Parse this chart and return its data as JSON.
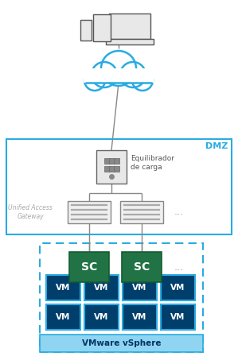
{
  "bg_color": "#ffffff",
  "blue": "#29abe2",
  "dark_blue": "#003f6b",
  "gray": "#555555",
  "light_gray": "#cccccc",
  "green": "#217346",
  "white": "#ffffff",
  "vm_fill": "#003f6b",
  "vm_border": "#29abe2",
  "vsphere_bar_fill": "#8fd4f0",
  "dmz_label": "DMZ",
  "lb_label": "Equilibrador\nde carga",
  "uag_label": "Unified Access\nGateway",
  "sc_label": "SC",
  "vm_label": "VM",
  "vsphere_label": "VMware vSphere"
}
